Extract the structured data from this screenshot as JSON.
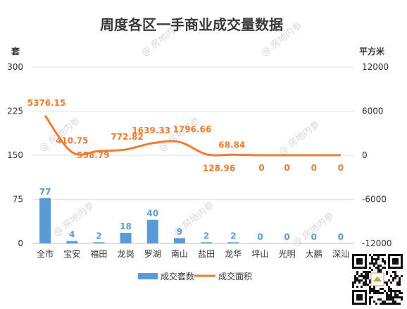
{
  "chart_data": {
    "type": "bar",
    "title": "周度各区一手商业成交量数据",
    "left_unit": "套",
    "right_unit": "平方米",
    "categories": [
      "全市",
      "宝安",
      "福田",
      "龙岗",
      "罗湖",
      "南山",
      "盐田",
      "龙华",
      "坪山",
      "光明",
      "大鹏",
      "深汕"
    ],
    "y_left": {
      "min": 0,
      "max": 300,
      "ticks": [
        "0",
        "75",
        "150",
        "225",
        "300"
      ]
    },
    "y_right": {
      "min": -12000,
      "max": 12000,
      "ticks": [
        "-12000",
        "-6000",
        "0",
        "6000",
        "12000"
      ]
    },
    "grid": true,
    "legend_position": "bottom",
    "series": [
      {
        "name": "成交套数",
        "type": "bar",
        "axis": "left",
        "color": "#5b9bd5",
        "values": [
          77,
          4,
          2,
          18,
          40,
          9,
          2,
          2,
          0,
          0,
          0,
          0
        ],
        "labels": [
          "77",
          "4",
          "2",
          "18",
          "40",
          "9",
          "2",
          "2",
          "0",
          "0",
          "0",
          "0"
        ]
      },
      {
        "name": "成交面积",
        "type": "line",
        "axis": "right",
        "color": "#ed7d31",
        "values": [
          5376.15,
          410.75,
          558.79,
          772.82,
          1639.33,
          1796.66,
          128.96,
          68.84,
          0,
          0,
          0,
          0
        ],
        "labels": [
          "5376.15",
          "410.75",
          "558.79",
          "772.82",
          "1639.33",
          "1796.66",
          "128.96",
          "68.84",
          "0",
          "0",
          "0",
          "0"
        ]
      }
    ]
  },
  "watermark": "@ 房地内参",
  "icons": {
    "qr": "qr-code-icon"
  }
}
